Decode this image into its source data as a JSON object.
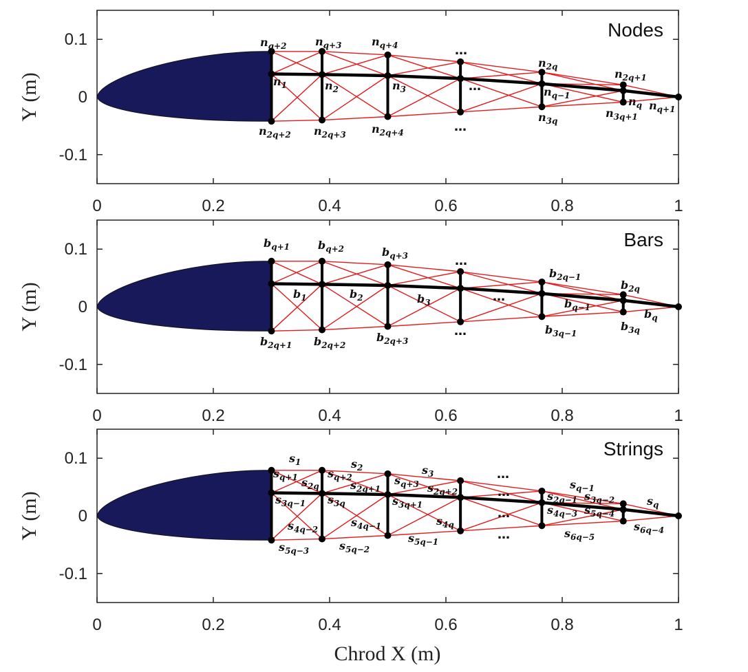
{
  "xlabel": "Chrod X (m)",
  "ylabel": "Y (m)",
  "xticks": [
    "0",
    "0.2",
    "0.4",
    "0.6",
    "0.8",
    "1"
  ],
  "yticks": [
    "0.1",
    "0",
    "-0.1"
  ],
  "ellipsis": "…",
  "colors": {
    "airfoil": "#17195a",
    "string": "#e41a1c",
    "bar": "#000000"
  },
  "panels": [
    {
      "title": "Nodes",
      "labels": [
        {
          "b": "n",
          "s": "q+2"
        },
        {
          "b": "n",
          "s": "q+3"
        },
        {
          "b": "n",
          "s": "q+4"
        },
        {
          "b": "n",
          "s": "2q"
        },
        {
          "b": "n",
          "s": "2q+1"
        },
        {
          "b": "n",
          "s": "1"
        },
        {
          "b": "n",
          "s": "2"
        },
        {
          "b": "n",
          "s": "3"
        },
        {
          "b": "n",
          "s": "q−1"
        },
        {
          "b": "n",
          "s": "q"
        },
        {
          "b": "n",
          "s": "q+1"
        },
        {
          "b": "n",
          "s": "2q+2"
        },
        {
          "b": "n",
          "s": "2q+3"
        },
        {
          "b": "n",
          "s": "2q+4"
        },
        {
          "b": "n",
          "s": "3q"
        },
        {
          "b": "n",
          "s": "3q+1"
        }
      ]
    },
    {
      "title": "Bars",
      "labels": [
        {
          "b": "b",
          "s": "q+1"
        },
        {
          "b": "b",
          "s": "q+2"
        },
        {
          "b": "b",
          "s": "q+3"
        },
        {
          "b": "b",
          "s": "2q−1"
        },
        {
          "b": "b",
          "s": "2q"
        },
        {
          "b": "b",
          "s": "1"
        },
        {
          "b": "b",
          "s": "2"
        },
        {
          "b": "b",
          "s": "3"
        },
        {
          "b": "b",
          "s": "q−1"
        },
        {
          "b": "b",
          "s": "q"
        },
        {
          "b": "b",
          "s": "2q+1"
        },
        {
          "b": "b",
          "s": "2q+2"
        },
        {
          "b": "b",
          "s": "2q+3"
        },
        {
          "b": "b",
          "s": "3q−1"
        },
        {
          "b": "b",
          "s": "3q"
        }
      ]
    },
    {
      "title": "Strings",
      "labels": [
        {
          "b": "s",
          "s": "1"
        },
        {
          "b": "s",
          "s": "q+1"
        },
        {
          "b": "s",
          "s": "2q"
        },
        {
          "b": "s",
          "s": "3q−1"
        },
        {
          "b": "s",
          "s": "2"
        },
        {
          "b": "s",
          "s": "q+2"
        },
        {
          "b": "s",
          "s": "2q+1"
        },
        {
          "b": "s",
          "s": "3q"
        },
        {
          "b": "s",
          "s": "3"
        },
        {
          "b": "s",
          "s": "q+3"
        },
        {
          "b": "s",
          "s": "2q+2"
        },
        {
          "b": "s",
          "s": "3q+1"
        },
        {
          "b": "s",
          "s": "q−1"
        },
        {
          "b": "s",
          "s": "2q−1"
        },
        {
          "b": "s",
          "s": "3q−2"
        },
        {
          "b": "s",
          "s": "4q−3"
        },
        {
          "b": "s",
          "s": "5q−4"
        },
        {
          "b": "s",
          "s": "q"
        },
        {
          "b": "s",
          "s": "4q−2"
        },
        {
          "b": "s",
          "s": "4q−1"
        },
        {
          "b": "s",
          "s": "4q"
        },
        {
          "b": "s",
          "s": "5q−3"
        },
        {
          "b": "s",
          "s": "5q−2"
        },
        {
          "b": "s",
          "s": "5q−1"
        },
        {
          "b": "s",
          "s": "6q−5"
        },
        {
          "b": "s",
          "s": "6q−4"
        }
      ]
    }
  ]
}
